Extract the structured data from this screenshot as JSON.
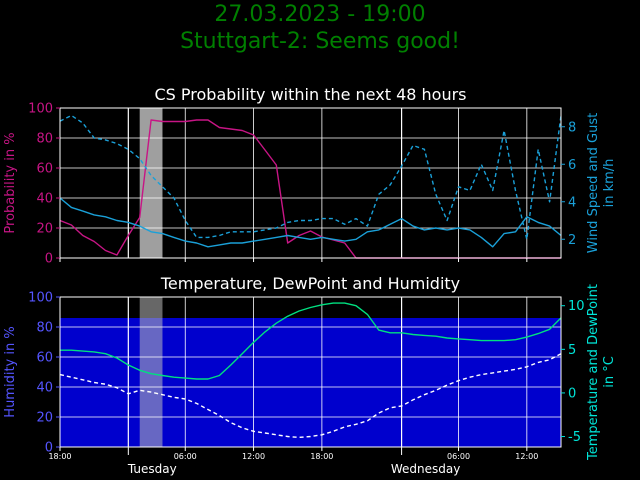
{
  "header": {
    "line1": "27.03.2023 - 19:00",
    "line2": "Stuttgart-2: Seems good!",
    "color": "#008000"
  },
  "chart_data": [
    {
      "type": "line",
      "title": "CS Probability within the next 48 hours",
      "ylabel_left": "Probability in %",
      "ylabel_right": "Wind Speed and Gust in km/h",
      "ylim_left": [
        0,
        100
      ],
      "ylim_right": [
        1,
        9
      ],
      "yticks_left": [
        0,
        20,
        40,
        60,
        80,
        100
      ],
      "yticks_right": [
        2,
        4,
        6,
        8
      ],
      "xlim": [
        0,
        44
      ],
      "grid": true,
      "left_axis_color": "#c71585",
      "right_axis_color": "#1aa0d8",
      "vlines": [
        6,
        30
      ],
      "shade": [
        7,
        9
      ],
      "series": [
        {
          "color": "#c71585",
          "style": "solid",
          "axis": "left",
          "x": [
            0,
            1,
            2,
            3,
            4,
            5,
            6,
            7,
            8,
            9,
            10,
            11,
            12,
            13,
            14,
            15,
            16,
            17,
            18,
            19,
            20,
            21,
            22,
            23,
            24,
            25,
            26,
            27,
            28,
            29,
            30,
            31,
            32,
            33,
            34,
            35,
            36,
            37,
            38,
            39,
            40,
            41,
            42,
            43,
            44
          ],
          "values": [
            25,
            22,
            15,
            11,
            5,
            2,
            15,
            27,
            92,
            91,
            91,
            91,
            92,
            92,
            87,
            86,
            85,
            82,
            72,
            62,
            10,
            15,
            18,
            14,
            12,
            10,
            0,
            0,
            0,
            0,
            0,
            0,
            0,
            0,
            0,
            0,
            0,
            0,
            0,
            0,
            0,
            0,
            0,
            0,
            0
          ]
        },
        {
          "color": "#1aa0d8",
          "style": "solid",
          "axis": "right",
          "x": [
            0,
            1,
            2,
            3,
            4,
            5,
            6,
            7,
            8,
            9,
            10,
            11,
            12,
            13,
            14,
            15,
            16,
            17,
            18,
            19,
            20,
            21,
            22,
            23,
            24,
            25,
            26,
            27,
            28,
            29,
            30,
            31,
            32,
            33,
            34,
            35,
            36,
            37,
            38,
            39,
            40,
            41,
            42,
            43,
            44
          ],
          "values": [
            4.2,
            3.7,
            3.5,
            3.3,
            3.2,
            3.0,
            2.9,
            2.7,
            2.4,
            2.3,
            2.1,
            1.9,
            1.8,
            1.6,
            1.7,
            1.8,
            1.8,
            1.9,
            2.0,
            2.1,
            2.2,
            2.1,
            2.0,
            2.1,
            2.0,
            1.9,
            2.0,
            2.4,
            2.5,
            2.8,
            3.1,
            2.7,
            2.5,
            2.6,
            2.5,
            2.6,
            2.5,
            2.1,
            1.6,
            2.3,
            2.4,
            3.2,
            2.9,
            2.7,
            2.2
          ]
        },
        {
          "color": "#1aa0d8",
          "style": "dashed",
          "axis": "right",
          "x": [
            0,
            1,
            2,
            3,
            4,
            5,
            6,
            7,
            8,
            9,
            10,
            11,
            12,
            13,
            14,
            15,
            16,
            17,
            18,
            19,
            20,
            21,
            22,
            23,
            24,
            25,
            26,
            27,
            28,
            29,
            30,
            31,
            32,
            33,
            34,
            35,
            36,
            37,
            38,
            39,
            40,
            41,
            42,
            43,
            44
          ],
          "values": [
            8.3,
            8.6,
            8.2,
            7.4,
            7.3,
            7.1,
            6.8,
            6.3,
            5.4,
            4.8,
            4.2,
            3.0,
            2.1,
            2.1,
            2.2,
            2.4,
            2.4,
            2.4,
            2.5,
            2.6,
            2.9,
            3.0,
            3.0,
            3.1,
            3.1,
            2.8,
            3.1,
            2.7,
            4.4,
            4.9,
            5.9,
            7.0,
            6.8,
            4.4,
            3.0,
            4.8,
            4.6,
            6.0,
            4.6,
            7.8,
            4.6,
            2.0,
            6.8,
            4.0,
            8.6
          ]
        }
      ]
    },
    {
      "type": "area",
      "title": "Temperature, DewPoint and Humidity",
      "ylabel_left": "Humidity in %",
      "ylabel_right": "Temperature and DewPoint in °C",
      "ylim_left": [
        0,
        100
      ],
      "ylim_right": [
        -6.2,
        11
      ],
      "yticks_left": [
        0,
        20,
        40,
        60,
        80,
        100
      ],
      "yticks_right": [
        -5,
        0,
        5,
        10
      ],
      "xlim": [
        0,
        44
      ],
      "grid": true,
      "left_axis_color": "#5555ff",
      "right_axis_color": "#00e5d8",
      "vlines": [
        6,
        30
      ],
      "shade": [
        7,
        9
      ],
      "humidity_fill": {
        "color": "#0000cd",
        "value": 86
      },
      "series": [
        {
          "color": "#00e080",
          "style": "solid",
          "axis": "right",
          "x": [
            0,
            1,
            2,
            3,
            4,
            5,
            6,
            7,
            8,
            9,
            10,
            11,
            12,
            13,
            14,
            15,
            16,
            17,
            18,
            19,
            20,
            21,
            22,
            23,
            24,
            25,
            26,
            27,
            28,
            29,
            30,
            31,
            32,
            33,
            34,
            35,
            36,
            37,
            38,
            39,
            40,
            41,
            42,
            43,
            44
          ],
          "values": [
            4.9,
            4.9,
            4.8,
            4.7,
            4.5,
            4.0,
            3.2,
            2.6,
            2.2,
            2.0,
            1.8,
            1.7,
            1.6,
            1.6,
            2.0,
            3.2,
            4.5,
            5.8,
            7.0,
            8.0,
            8.8,
            9.4,
            9.8,
            10.1,
            10.3,
            10.3,
            10.0,
            9.0,
            7.2,
            6.9,
            6.9,
            6.7,
            6.6,
            6.5,
            6.3,
            6.2,
            6.1,
            6.0,
            6.0,
            6.0,
            6.1,
            6.4,
            6.8,
            7.3,
            8.6
          ]
        },
        {
          "color": "#ffffff",
          "style": "dashed",
          "axis": "right",
          "x": [
            0,
            1,
            2,
            3,
            4,
            5,
            6,
            7,
            8,
            9,
            10,
            11,
            12,
            13,
            14,
            15,
            16,
            17,
            18,
            19,
            20,
            21,
            22,
            23,
            24,
            25,
            26,
            27,
            28,
            29,
            30,
            31,
            32,
            33,
            34,
            35,
            36,
            37,
            38,
            39,
            40,
            41,
            42,
            43,
            44
          ],
          "values": [
            2.1,
            1.8,
            1.5,
            1.2,
            1.0,
            0.6,
            -0.1,
            0.3,
            0.1,
            -0.2,
            -0.5,
            -0.7,
            -1.2,
            -1.9,
            -2.6,
            -3.4,
            -4.0,
            -4.4,
            -4.6,
            -4.8,
            -5.0,
            -5.1,
            -5.0,
            -4.8,
            -4.4,
            -3.9,
            -3.6,
            -3.2,
            -2.3,
            -1.7,
            -1.5,
            -0.8,
            -0.2,
            0.3,
            0.9,
            1.4,
            1.8,
            2.1,
            2.3,
            2.5,
            2.7,
            3.0,
            3.5,
            3.8,
            4.5
          ]
        }
      ]
    }
  ],
  "x_axis": {
    "tick_positions": [
      0,
      11,
      17,
      23,
      35,
      41
    ],
    "tick_labels": [
      "18:00",
      "06:00",
      "12:00",
      "18:00",
      "06:00",
      "12:00"
    ],
    "day_positions": [
      6,
      30
    ],
    "day_labels": [
      "Tuesday",
      "Wednesday"
    ]
  }
}
